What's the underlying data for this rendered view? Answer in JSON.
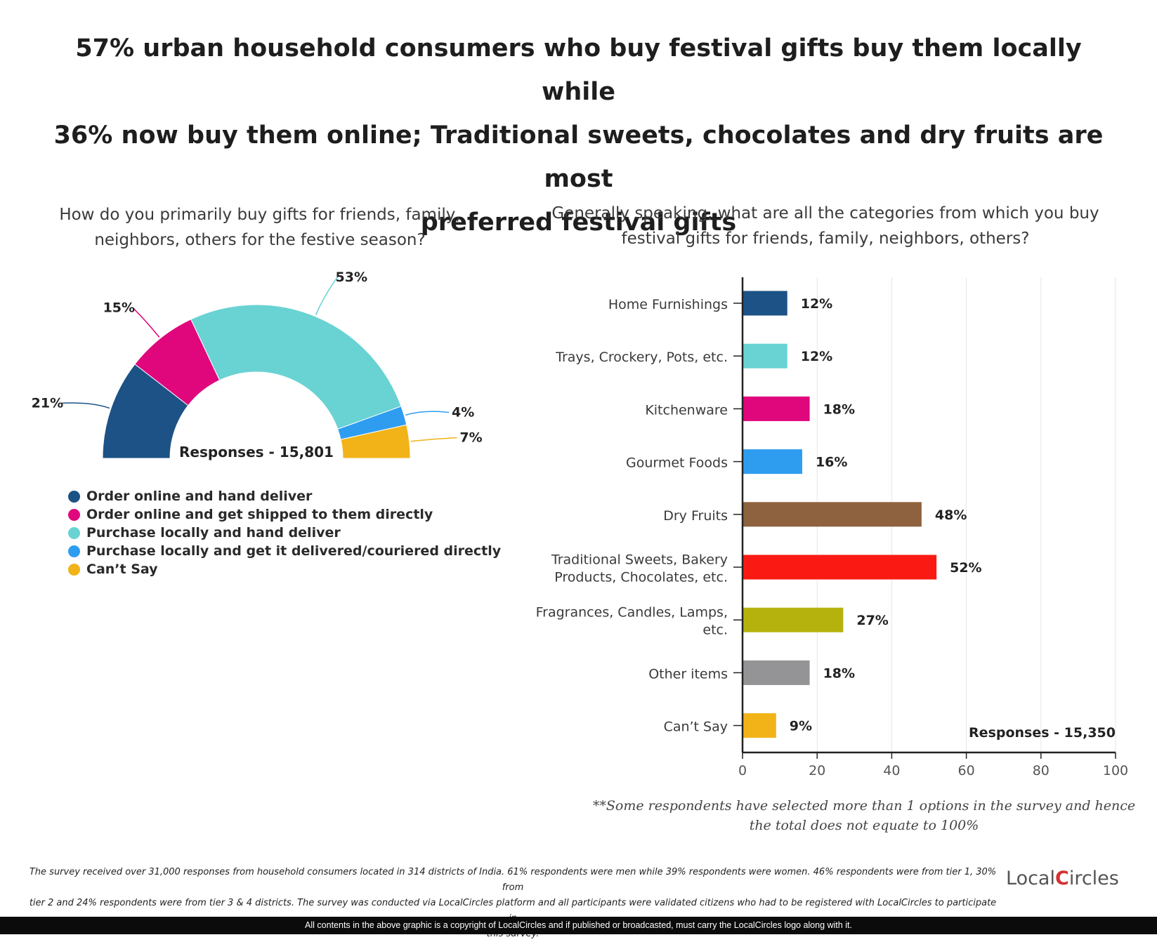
{
  "title_lines": [
    "57% urban household consumers who buy festival gifts buy them locally while",
    "36% now buy them online; Traditional sweets, chocolates and dry fruits are most",
    "preferred festival gifts"
  ],
  "chart_data": [
    {
      "type": "pie",
      "title_lines": [
        "How do you primarily buy gifts for friends, family,",
        "neighbors, others for the festive season?"
      ],
      "responses_label": "Responses - 15,801",
      "slices": [
        {
          "name": "Order online and hand deliver",
          "value": 21,
          "label": "21%",
          "color": "#1c5286"
        },
        {
          "name": "Order online and get shipped to them directly",
          "value": 15,
          "label": "15%",
          "color": "#e0077d"
        },
        {
          "name": "Purchase locally and hand deliver",
          "value": 53,
          "label": "53%",
          "color": "#69d2d3"
        },
        {
          "name": "Purchase locally and get it delivered/couriered directly",
          "value": 4,
          "label": "4%",
          "color": "#2e9df0"
        },
        {
          "name": "Can’t Say",
          "value": 7,
          "label": "7%",
          "color": "#f1b318"
        }
      ]
    },
    {
      "type": "bar",
      "orientation": "horizontal",
      "title_lines": [
        "Generally speaking, what are all the categories from which you buy",
        "festival gifts for friends, family, neighbors, others?"
      ],
      "responses_label": "Responses - 15,350",
      "xlim": [
        0,
        100
      ],
      "xticks": [
        "0",
        "20",
        "40",
        "60",
        "80",
        "100"
      ],
      "grid": true,
      "categories": [
        {
          "label_lines": [
            "Home Furnishings"
          ],
          "value": 12,
          "label": "12%",
          "color": "#1c5286"
        },
        {
          "label_lines": [
            "Trays, Crockery, Pots, etc."
          ],
          "value": 12,
          "label": "12%",
          "color": "#69d2d3"
        },
        {
          "label_lines": [
            "Kitchenware"
          ],
          "value": 18,
          "label": "18%",
          "color": "#e0077d"
        },
        {
          "label_lines": [
            "Gourmet Foods"
          ],
          "value": 16,
          "label": "16%",
          "color": "#2e9df0"
        },
        {
          "label_lines": [
            "Dry Fruits"
          ],
          "value": 48,
          "label": "48%",
          "color": "#8e623e"
        },
        {
          "label_lines": [
            "Traditional Sweets, Bakery",
            "Products, Chocolates, etc."
          ],
          "value": 52,
          "label": "52%",
          "color": "#fb1a13"
        },
        {
          "label_lines": [
            "Fragrances, Candles, Lamps,",
            "etc."
          ],
          "value": 27,
          "label": "27%",
          "color": "#b5b20d"
        },
        {
          "label_lines": [
            "Other items"
          ],
          "value": 18,
          "label": "18%",
          "color": "#949497"
        },
        {
          "label_lines": [
            "Can’t Say"
          ],
          "value": 9,
          "label": "9%",
          "color": "#f1b318"
        }
      ]
    }
  ],
  "note_lines": [
    "**Some respondents have selected more than 1 options in the survey and hence",
    "the total does not equate to 100%"
  ],
  "footer_lines": [
    "The survey received over 31,000 responses from household consumers located in 314 districts of India. 61% respondents were men while 39% respondents were women. 46% respondents were from tier 1, 30% from",
    "tier 2 and 24% respondents were from tier 3 & 4 districts. The survey was conducted via LocalCircles platform and all participants were validated citizens who had to be registered with LocalCircles to participate in",
    "this survey."
  ],
  "logo": {
    "pre": "Local",
    "mid": "C",
    "post": "ircles"
  },
  "copyright": "All contents in the above graphic is a copyright of LocalCircles and if published or broadcasted, must carry the LocalCircles logo along with it."
}
